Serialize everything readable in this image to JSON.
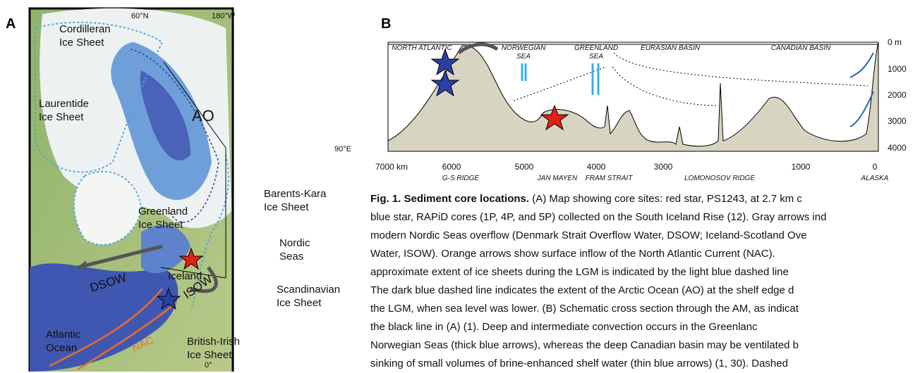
{
  "panel_a": {
    "letter": "A",
    "coords": {
      "lat": "60°N",
      "lon180": "180°W",
      "lon90": "90°E",
      "lon0": "0°"
    },
    "labels": {
      "cordilleran": [
        "Cordilleran",
        "Ice Sheet"
      ],
      "laurentide": [
        "Laurentide",
        "Ice Sheet"
      ],
      "ao": "AO",
      "barents": [
        "Barents-Kara",
        "Ice Sheet"
      ],
      "greenland": [
        "Greenland",
        "Ice Sheet"
      ],
      "nordic": [
        "Nordic",
        "Seas"
      ],
      "dsow": "DSOW",
      "iceland": "Iceland",
      "isow": "ISOW",
      "scandinavian": [
        "Scandinavian",
        "Ice Sheet"
      ],
      "atlantic": [
        "Atlantic",
        "Ocean"
      ],
      "nac": "NAC",
      "british": [
        "British-Irish",
        "Ice Sheet"
      ]
    }
  },
  "panel_b": {
    "letter": "B",
    "regions": [
      "NORTH ATLANTIC",
      "NORWEGIAN",
      "SEA",
      "GREENLAND",
      "SEA",
      "EURASIAN BASIN",
      "CANADIAN BASIN"
    ],
    "depth_labels": [
      "0 m",
      "1000",
      "2000",
      "3000",
      "4000"
    ],
    "distance_labels": [
      "7000 km",
      "6000",
      "5000",
      "4000",
      "3000",
      "1000",
      "0"
    ],
    "features": [
      "G-S RIDGE",
      "JAN MAYEN",
      "FRAM STRAIT",
      "LOMONOSOV RIDGE",
      "ALASKA"
    ]
  },
  "caption": {
    "title": "Fig. 1. Sediment core locations.",
    "lines": [
      " (A) Map showing core sites: red star, PS1243, at 2.7 km c",
      "blue star, RAPiD cores (1P, 4P, and 5P) collected on the South Iceland Rise (12). Gray arrows ind",
      "modern Nordic Seas overflow (Denmark Strait Overflow Water, DSOW; Iceland-Scotland Ove",
      "Water, ISOW). Orange arrows show surface inflow of the North Atlantic Current (NAC).",
      "approximate extent of ice sheets during the LGM is indicated by the light blue dashed line",
      "The dark blue dashed line indicates the extent of the Arctic Ocean (AO) at the shelf edge d",
      "the LGM, when sea level was lower. (B) Schematic cross section through the AM, as indicat",
      "the black line in (A) (1). Deep and intermediate convection occurs in the Greenlanc",
      "Norwegian Seas (thick blue arrows), whereas the deep Canadian basin may be ventilated b",
      "sinking of small volumes of brine-enhanced shelf water (thin blue arrows) (1, 30). Dashed"
    ]
  }
}
